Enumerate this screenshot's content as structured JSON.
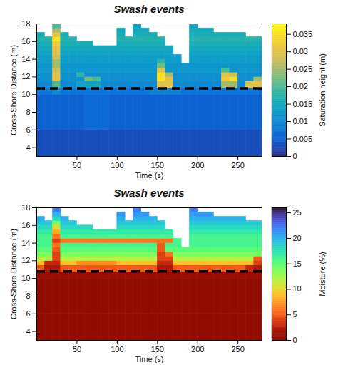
{
  "chart_data": [
    {
      "type": "heatmap",
      "title": "Swash events",
      "x_label": "Time (s)",
      "y_label": "Cross-Shore Distance (m)",
      "xlim": [
        0,
        280
      ],
      "xticks": [
        50,
        100,
        150,
        200,
        250
      ],
      "ylim": [
        3,
        18
      ],
      "yticks": [
        4,
        6,
        8,
        10,
        12,
        14,
        16,
        18
      ],
      "color": "parula",
      "hline": 10.7,
      "colorbar": {
        "label": "Saturation height (m)",
        "lim": [
          0,
          0.038
        ],
        "ticks": [
          0,
          0.005,
          0.01,
          0.015,
          0.02,
          0.025,
          0.03,
          0.035
        ]
      },
      "x_edges": [
        0,
        10,
        20,
        30,
        40,
        50,
        60,
        70,
        80,
        90,
        100,
        110,
        120,
        130,
        140,
        150,
        160,
        170,
        180,
        190,
        200,
        210,
        220,
        230,
        240,
        250,
        260,
        270,
        280
      ],
      "y_edges": [
        3,
        6,
        10,
        10.7,
        11.5,
        12,
        12.5,
        13,
        13.5,
        14,
        14.5,
        15,
        15.5,
        16,
        16.5,
        17,
        17.5,
        18
      ],
      "cells": [
        [
          0.003,
          0.003,
          0.003,
          0.003,
          0.003,
          0.003,
          0.003,
          0.003,
          0.003,
          0.003,
          0.003,
          0.003,
          0.003,
          0.003,
          0.003,
          0.003,
          0.003,
          0.003,
          0.003,
          0.003,
          0.003,
          0.003,
          0.003,
          0.003,
          0.003,
          0.003,
          0.003,
          0.003
        ],
        [
          0.005,
          0.005,
          0.005,
          0.005,
          0.005,
          0.005,
          0.006,
          0.006,
          0.006,
          0.005,
          0.005,
          0.005,
          0.005,
          0.005,
          0.005,
          0.005,
          0.005,
          0.005,
          0.005,
          0.005,
          0.005,
          0.005,
          0.005,
          0.005,
          0.005,
          0.005,
          0.005,
          0.005
        ],
        [
          0.007,
          0.007,
          0.01,
          0.007,
          0.007,
          0.007,
          0.007,
          0.007,
          0.007,
          0.007,
          0.007,
          0.007,
          0.007,
          0.007,
          0.009,
          0.009,
          0.009,
          0.009,
          0.007,
          0.007,
          0.007,
          0.007,
          0.007,
          0.007,
          0.007,
          0.007,
          0.007,
          0.007
        ],
        [
          0.01,
          0.01,
          0.02,
          0.01,
          0.01,
          0.014,
          0.014,
          0.014,
          0.01,
          0.01,
          0.01,
          0.01,
          0.01,
          0.01,
          0.01,
          0.03,
          0.03,
          0.01,
          0.01,
          0.01,
          0.01,
          0.01,
          0.01,
          0.025,
          0.025,
          0.01,
          0.03,
          0.03
        ],
        [
          0.011,
          0.011,
          0.03,
          0.011,
          0.011,
          0.011,
          0.022,
          0.02,
          0.011,
          0.011,
          0.011,
          0.011,
          0.011,
          0.011,
          0.011,
          0.035,
          0.03,
          0.011,
          0.011,
          0.011,
          0.011,
          0.011,
          0.011,
          0.032,
          0.035,
          0.011,
          0.011,
          0.025
        ],
        [
          0.011,
          0.011,
          0.03,
          0.011,
          0.011,
          0.018,
          0.011,
          0.011,
          0.011,
          0.011,
          0.011,
          0.011,
          0.011,
          0.011,
          0.011,
          0.035,
          0.025,
          0.011,
          0.011,
          0.011,
          0.011,
          0.011,
          0.011,
          0.03,
          0.028,
          0.011,
          0.011,
          0.011
        ],
        [
          0.012,
          0.012,
          0.028,
          0.012,
          0.012,
          0.012,
          0.012,
          0.012,
          0.012,
          0.012,
          0.012,
          0.012,
          0.012,
          0.012,
          0.012,
          0.03,
          0.012,
          0.012,
          0.012,
          0.012,
          0.012,
          0.012,
          0.012,
          0.02,
          0.012,
          0.012,
          0.012,
          0.012
        ],
        [
          0.012,
          0.012,
          0.025,
          0.012,
          0.012,
          0.012,
          0.012,
          0.012,
          0.012,
          0.012,
          0.012,
          0.012,
          0.012,
          0.012,
          0.012,
          0.022,
          0.012,
          0.012,
          0.012,
          0.012,
          0.012,
          0.012,
          0.012,
          0.012,
          0.012,
          0.012,
          0.012,
          0.012
        ],
        [
          0.013,
          0.013,
          0.025,
          0.013,
          0.013,
          0.013,
          0.013,
          0.013,
          0.013,
          0.013,
          0.013,
          0.013,
          0.013,
          0.013,
          0.013,
          0.018,
          0.013,
          0.013,
          null,
          0.013,
          0.013,
          0.013,
          0.013,
          0.013,
          0.013,
          0.013,
          0.013,
          0.013
        ],
        [
          0.013,
          0.013,
          0.028,
          0.013,
          0.013,
          0.013,
          0.013,
          0.013,
          0.013,
          0.013,
          0.013,
          0.013,
          0.013,
          0.013,
          0.013,
          0.013,
          0.013,
          0.013,
          null,
          0.013,
          0.013,
          0.013,
          0.013,
          0.013,
          0.013,
          0.013,
          0.013,
          0.013
        ],
        [
          0.014,
          0.014,
          0.03,
          0.014,
          0.014,
          0.014,
          0.014,
          0.014,
          0.014,
          0.014,
          0.014,
          0.014,
          0.014,
          0.014,
          0.014,
          0.014,
          0.014,
          null,
          null,
          0.014,
          0.014,
          0.014,
          0.014,
          0.014,
          0.014,
          0.014,
          0.014,
          0.014
        ],
        [
          0.015,
          0.015,
          0.03,
          0.015,
          0.015,
          0.015,
          0.015,
          0.015,
          0.015,
          0.015,
          0.015,
          0.015,
          0.015,
          0.015,
          0.015,
          0.015,
          0.015,
          null,
          null,
          0.015,
          0.015,
          0.015,
          0.015,
          0.015,
          0.015,
          0.015,
          0.015,
          0.015
        ],
        [
          0.016,
          0.016,
          0.032,
          0.016,
          0.016,
          0.016,
          0.016,
          null,
          null,
          null,
          0.016,
          0.016,
          0.016,
          0.016,
          0.016,
          0.016,
          null,
          null,
          null,
          0.016,
          0.016,
          0.016,
          0.016,
          0.016,
          0.016,
          0.016,
          0.016,
          0.016
        ],
        [
          0.017,
          0.017,
          0.035,
          0.017,
          0.017,
          null,
          null,
          null,
          null,
          null,
          0.017,
          0.017,
          0.017,
          0.017,
          0.017,
          0.017,
          null,
          null,
          null,
          0.017,
          0.017,
          0.017,
          0.017,
          0.017,
          0.017,
          0.017,
          0.017,
          0.017
        ],
        [
          0.016,
          null,
          0.03,
          0.016,
          null,
          null,
          null,
          null,
          null,
          null,
          0.016,
          null,
          0.016,
          0.016,
          0.016,
          null,
          null,
          null,
          null,
          0.016,
          0.016,
          0.016,
          0.016,
          0.016,
          0.016,
          0.016,
          null,
          null
        ],
        [
          null,
          null,
          0.025,
          null,
          null,
          null,
          null,
          null,
          null,
          null,
          0.015,
          null,
          0.015,
          0.015,
          null,
          null,
          null,
          null,
          null,
          0.015,
          0.015,
          0.015,
          null,
          null,
          null,
          null,
          null,
          null
        ],
        [
          null,
          null,
          0.02,
          null,
          null,
          null,
          null,
          null,
          null,
          null,
          null,
          null,
          0.014,
          null,
          null,
          null,
          null,
          null,
          null,
          0.014,
          null,
          null,
          null,
          null,
          null,
          null,
          null,
          null
        ]
      ]
    },
    {
      "type": "heatmap",
      "title": "Swash events",
      "x_label": "Time (s)",
      "y_label": "Cross-Shore Distance (m)",
      "xlim": [
        0,
        280
      ],
      "xticks": [
        50,
        100,
        150,
        200,
        250
      ],
      "ylim": [
        3,
        18
      ],
      "yticks": [
        4,
        6,
        8,
        10,
        12,
        14,
        16,
        18
      ],
      "color": "turbo-reversed",
      "hline": 10.8,
      "colorbar": {
        "label": "Moisture (%)",
        "lim": [
          0,
          26
        ],
        "ticks": [
          0,
          5,
          10,
          15,
          20,
          25
        ]
      },
      "x_edges": [
        0,
        10,
        20,
        30,
        40,
        50,
        60,
        70,
        80,
        90,
        100,
        110,
        120,
        130,
        140,
        150,
        160,
        170,
        180,
        190,
        200,
        210,
        220,
        230,
        240,
        250,
        260,
        270,
        280
      ],
      "y_edges": [
        3,
        6,
        10,
        10.7,
        11.5,
        12,
        12.5,
        13,
        13.5,
        14,
        14.5,
        15,
        15.5,
        16,
        16.5,
        17,
        17.5,
        18
      ],
      "cells": [
        [
          0.5,
          0.5,
          0.5,
          0.5,
          0.5,
          0.5,
          0.5,
          0.5,
          0.5,
          0.5,
          0.5,
          0.5,
          0.5,
          0.5,
          0.5,
          0.5,
          0.5,
          0.5,
          0.5,
          0.5,
          0.5,
          0.5,
          0.5,
          0.5,
          0.5,
          0.5,
          0.5,
          0.5
        ],
        [
          0.5,
          0.5,
          0.5,
          0.5,
          0.5,
          0.5,
          0.5,
          0.5,
          0.5,
          0.5,
          0.5,
          0.5,
          0.5,
          0.5,
          0.5,
          0.5,
          0.5,
          0.5,
          0.5,
          0.5,
          0.5,
          0.5,
          0.5,
          0.5,
          0.5,
          0.5,
          0.5,
          0.5
        ],
        [
          1,
          1,
          1,
          1,
          1,
          1,
          1,
          1,
          1,
          1,
          1,
          1,
          1,
          1,
          1,
          1,
          1,
          1,
          1,
          1,
          1,
          1,
          1,
          1,
          1,
          1,
          1,
          1
        ],
        [
          5,
          2,
          2,
          5,
          5,
          5,
          5,
          5,
          5,
          5,
          5,
          5,
          5,
          5,
          5,
          2,
          2,
          5,
          5,
          5,
          5,
          5,
          5,
          5,
          5,
          5,
          3,
          2
        ],
        [
          9,
          3,
          3,
          9,
          9,
          7,
          7,
          7,
          7,
          7,
          9,
          9,
          9,
          9,
          9,
          3,
          3,
          9,
          9,
          9,
          9,
          9,
          9,
          9,
          9,
          9,
          9,
          4
        ],
        [
          12,
          12,
          4,
          12,
          12,
          12,
          12,
          12,
          12,
          12,
          12,
          12,
          12,
          12,
          12,
          4,
          4,
          12,
          12,
          12,
          12,
          12,
          12,
          12,
          12,
          12,
          12,
          5
        ],
        [
          14,
          14,
          4,
          14,
          14,
          14,
          14,
          14,
          14,
          14,
          14,
          14,
          14,
          14,
          14,
          4,
          6,
          14,
          14,
          14,
          14,
          14,
          14,
          14,
          14,
          14,
          14,
          14
        ],
        [
          15,
          15,
          5,
          15,
          15,
          15,
          15,
          15,
          15,
          15,
          15,
          15,
          15,
          15,
          15,
          5,
          15,
          15,
          15,
          15,
          15,
          15,
          15,
          15,
          15,
          15,
          15,
          15
        ],
        [
          16,
          16,
          6,
          16,
          16,
          16,
          16,
          16,
          16,
          16,
          16,
          16,
          16,
          16,
          16,
          5,
          16,
          16,
          null,
          16,
          16,
          16,
          16,
          16,
          16,
          16,
          16,
          16
        ],
        [
          16,
          16,
          4,
          6,
          6,
          6,
          6,
          6,
          6,
          6,
          6,
          6,
          6,
          6,
          6,
          6,
          6,
          16,
          null,
          16,
          16,
          16,
          16,
          16,
          16,
          16,
          16,
          16
        ],
        [
          16,
          16,
          6,
          16,
          16,
          16,
          16,
          16,
          16,
          16,
          16,
          16,
          16,
          16,
          16,
          16,
          16,
          null,
          null,
          16,
          16,
          16,
          16,
          16,
          16,
          16,
          16,
          16
        ],
        [
          17,
          17,
          8,
          17,
          17,
          17,
          17,
          17,
          17,
          17,
          17,
          17,
          17,
          17,
          17,
          17,
          17,
          null,
          null,
          17,
          17,
          17,
          17,
          17,
          17,
          17,
          17,
          17
        ],
        [
          18,
          18,
          10,
          18,
          18,
          18,
          18,
          null,
          null,
          null,
          18,
          18,
          18,
          18,
          18,
          18,
          null,
          null,
          null,
          18,
          18,
          18,
          18,
          18,
          18,
          18,
          18,
          18
        ],
        [
          19,
          19,
          14,
          19,
          19,
          null,
          null,
          null,
          null,
          null,
          19,
          19,
          19,
          19,
          19,
          19,
          null,
          null,
          null,
          19,
          19,
          19,
          19,
          19,
          19,
          19,
          19,
          19
        ],
        [
          20,
          null,
          18,
          20,
          null,
          null,
          null,
          null,
          null,
          null,
          20,
          null,
          20,
          20,
          20,
          null,
          null,
          null,
          null,
          20,
          20,
          20,
          20,
          20,
          20,
          20,
          null,
          null
        ],
        [
          null,
          null,
          20,
          null,
          null,
          null,
          null,
          null,
          null,
          null,
          21,
          null,
          21,
          21,
          null,
          null,
          null,
          null,
          null,
          21,
          21,
          21,
          null,
          null,
          null,
          null,
          null,
          null
        ],
        [
          null,
          null,
          22,
          null,
          null,
          null,
          null,
          null,
          null,
          null,
          null,
          null,
          22,
          null,
          null,
          null,
          null,
          null,
          null,
          22,
          null,
          null,
          null,
          null,
          null,
          null,
          null,
          null
        ]
      ]
    }
  ]
}
